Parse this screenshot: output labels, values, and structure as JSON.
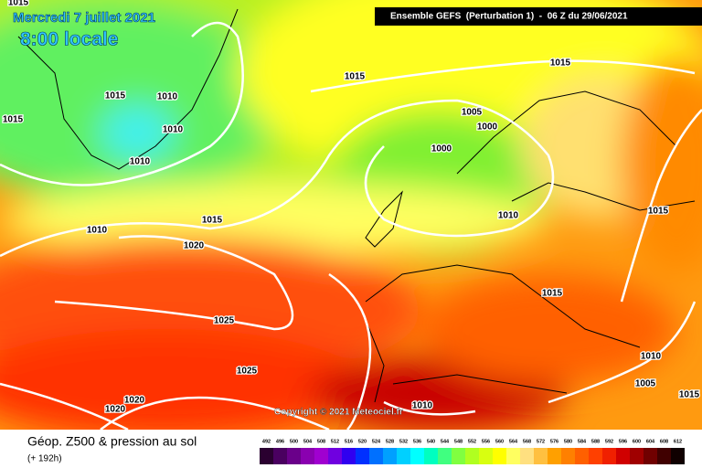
{
  "header": {
    "date": "Mercredi 7 juillet 2021",
    "time": "8:00 locale",
    "run": "Ensemble GEFS  (Perturbation 1)  -  06 Z du 29/06/2021"
  },
  "isobar_labels": [
    "1015",
    "1015",
    "1015",
    "1015",
    "1010",
    "1015",
    "1010",
    "1010",
    "1005",
    "1000",
    "1000",
    "1010",
    "1015",
    "1010",
    "1020",
    "1015",
    "1015",
    "1025",
    "1025",
    "1010",
    "1005",
    "1015",
    "1020",
    "1020",
    "1010"
  ],
  "copyright": "Copyright © 2021 Meteociel.fr",
  "legend": {
    "title": "Géop. Z500 & pression au sol",
    "lead": "(+ 192h)",
    "scale": [
      492,
      496,
      500,
      504,
      508,
      512,
      516,
      520,
      524,
      528,
      532,
      536,
      540,
      544,
      548,
      552,
      556,
      560,
      564,
      568,
      572,
      576,
      580,
      584,
      588,
      592,
      596,
      600,
      604,
      608,
      612
    ],
    "colors": [
      "#2a0030",
      "#4a0060",
      "#6a008a",
      "#8a00b0",
      "#a000d0",
      "#7000e0",
      "#3000f0",
      "#0030ff",
      "#0070ff",
      "#00a0ff",
      "#00d0ff",
      "#00ffff",
      "#00ffc0",
      "#40ff80",
      "#80ff40",
      "#b0ff20",
      "#d8ff10",
      "#ffff00",
      "#ffff60",
      "#ffe080",
      "#ffc040",
      "#ffa000",
      "#ff8000",
      "#ff6000",
      "#ff4000",
      "#f02000",
      "#d00000",
      "#a00000",
      "#700000",
      "#400000",
      "#100000"
    ]
  }
}
